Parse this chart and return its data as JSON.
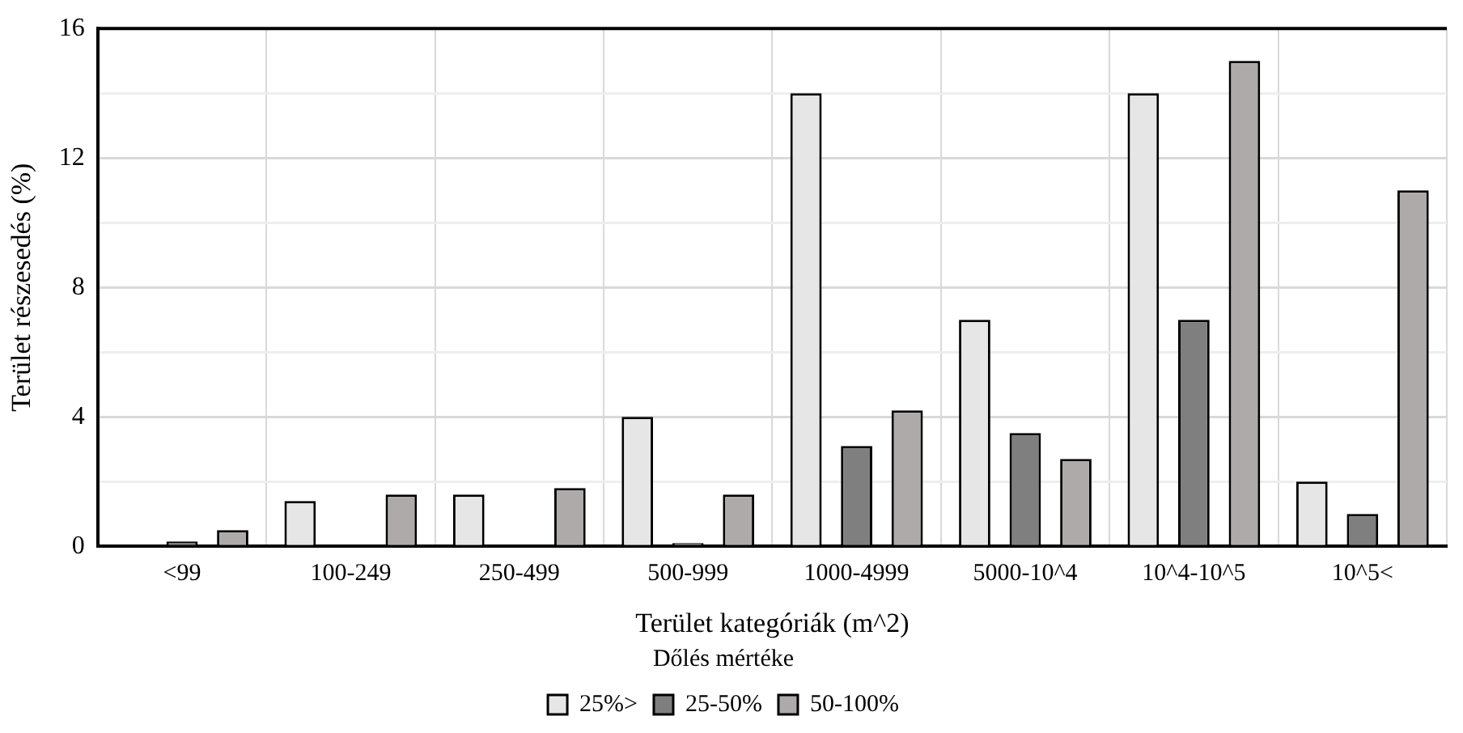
{
  "chart_data": {
    "type": "bar",
    "xlabel": "Terület kategóriák (m^2)",
    "ylabel": "Terület részesedés (%)",
    "legend_title": "Dőlés mértéke",
    "categories": [
      "<99",
      "100-249",
      "250-499",
      "500-999",
      "1000-4999",
      "5000-10^4",
      "10^4-10^5",
      "10^5<"
    ],
    "series": [
      {
        "name": "25%>",
        "color": "#e6e6e6",
        "values": [
          null,
          1.4,
          1.6,
          4.0,
          14.0,
          7.0,
          14.0,
          2.0
        ]
      },
      {
        "name": "25-50%",
        "color": "#7f7f7f",
        "values": [
          0.15,
          null,
          null,
          0.1,
          3.1,
          3.5,
          7.0,
          1.0
        ]
      },
      {
        "name": "50-100%",
        "color": "#aeaaaa",
        "values": [
          0.5,
          1.6,
          1.8,
          1.6,
          4.2,
          2.7,
          15.0,
          11.0
        ]
      }
    ],
    "ylim": [
      0,
      16
    ],
    "yticks": [
      0,
      {
        "value": 2,
        "label": null
      },
      4,
      {
        "value": 6,
        "label": null
      },
      8,
      {
        "value": 10,
        "label": null
      },
      12,
      {
        "value": 14,
        "label": null
      },
      16
    ],
    "grid": true,
    "legend": "bottom"
  }
}
